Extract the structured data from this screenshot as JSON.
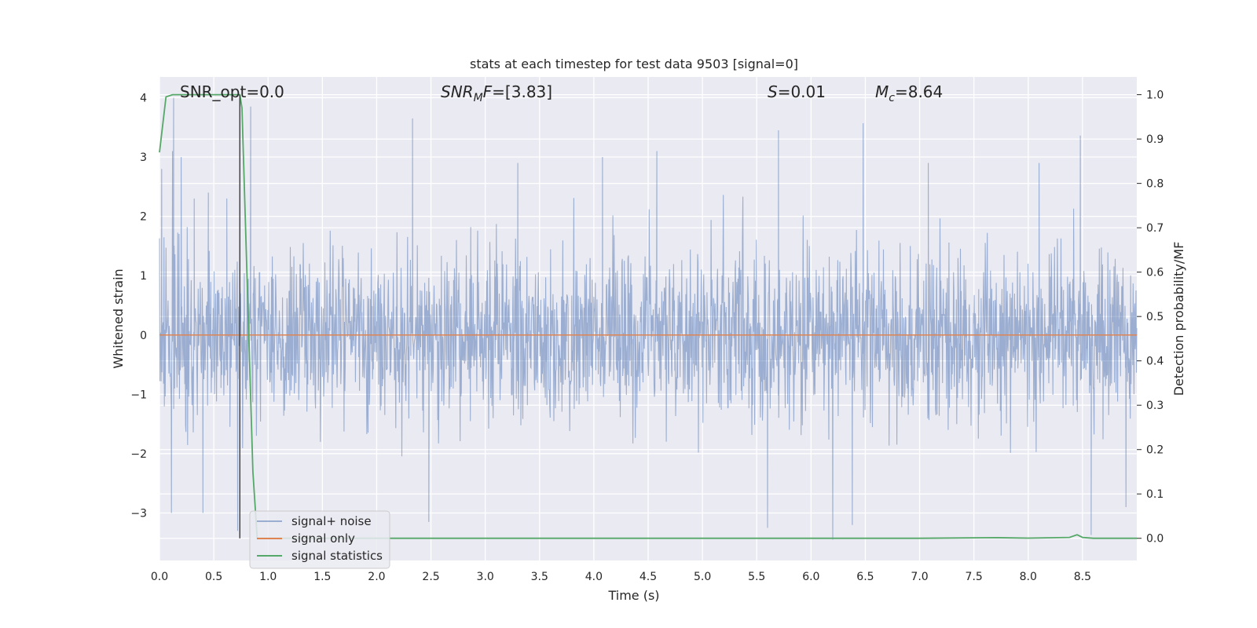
{
  "chart_data": {
    "type": "line",
    "title": "stats at each timestep for test data 9503 [signal=0]",
    "xlabel": "Time (s)",
    "ylabel_left": "Whitened strain",
    "ylabel_right": "Detection probability/MF",
    "xlim": [
      0.0,
      9.0
    ],
    "ylim_left": [
      -3.8,
      4.35
    ],
    "ylim_right": [
      -0.05,
      1.04
    ],
    "x_ticks": [
      "0.0",
      "0.5",
      "1.0",
      "1.5",
      "2.0",
      "2.5",
      "3.0",
      "3.5",
      "4.0",
      "4.5",
      "5.0",
      "5.5",
      "6.0",
      "6.5",
      "7.0",
      "7.5",
      "8.0",
      "8.5"
    ],
    "y_left_ticks": [
      "−3",
      "−2",
      "−1",
      "0",
      "1",
      "2",
      "3",
      "4"
    ],
    "y_right_ticks": [
      "0.0",
      "0.1",
      "0.2",
      "0.3",
      "0.4",
      "0.5",
      "0.6",
      "0.7",
      "0.8",
      "0.9",
      "1.0"
    ],
    "annotations": {
      "snr_opt": "SNR_opt=0.0",
      "snr_mf_sym": "SNR",
      "snr_mf_sub": "M",
      "snr_mf_sym2": "F",
      "snr_mf_val": "=[3.83]",
      "s_sym": "S",
      "s_val": "=0.01",
      "mc_sym": "M",
      "mc_sub": "c",
      "mc_val": "=8.64"
    },
    "legend": {
      "placement": "lower-left",
      "entries": [
        "signal+ noise",
        "signal only",
        "signal statistics"
      ]
    },
    "series": [
      {
        "name": "signal+ noise",
        "axis": "left",
        "color": "#4c72b0",
        "opacity": 0.5,
        "duration": 9.0,
        "typical_amplitude": 1.3,
        "peak_values": [
          {
            "x": 0.02,
            "y": 2.8
          },
          {
            "x": 0.12,
            "y": 3.1
          },
          {
            "x": 0.13,
            "y": 4.0
          },
          {
            "x": 0.2,
            "y": 3.0
          },
          {
            "x": 0.32,
            "y": 2.3
          },
          {
            "x": 0.45,
            "y": 2.4
          },
          {
            "x": 0.62,
            "y": 2.3
          },
          {
            "x": 0.84,
            "y": 3.85
          },
          {
            "x": 2.33,
            "y": 3.65
          },
          {
            "x": 3.3,
            "y": 2.9
          },
          {
            "x": 4.08,
            "y": 3.0
          },
          {
            "x": 4.58,
            "y": 3.1
          },
          {
            "x": 5.7,
            "y": 3.45
          },
          {
            "x": 6.48,
            "y": 3.57
          },
          {
            "x": 7.08,
            "y": 2.9
          },
          {
            "x": 8.1,
            "y": 2.9
          },
          {
            "x": 8.48,
            "y": 3.36
          },
          {
            "x": 0.72,
            "y": -3.3
          },
          {
            "x": 0.11,
            "y": -3.0
          },
          {
            "x": 0.4,
            "y": -3.0
          },
          {
            "x": 2.48,
            "y": -3.15
          },
          {
            "x": 5.6,
            "y": -3.25
          },
          {
            "x": 6.2,
            "y": -3.45
          },
          {
            "x": 6.38,
            "y": -3.2
          },
          {
            "x": 8.58,
            "y": -3.37
          },
          {
            "x": 8.9,
            "y": -2.9
          }
        ]
      },
      {
        "name": "signal only",
        "axis": "left",
        "color": "#dd8452",
        "x": [
          0.0,
          9.0
        ],
        "y": [
          0.0,
          0.0
        ]
      },
      {
        "name": "signal statistics",
        "axis": "right",
        "color": "#55a868",
        "x": [
          0.0,
          0.06,
          0.12,
          0.25,
          0.5,
          0.6,
          0.74,
          0.76,
          0.86,
          0.9,
          1.0,
          2.0,
          4.0,
          7.0,
          7.7,
          8.0,
          8.38,
          8.45,
          8.5,
          8.6,
          9.0
        ],
        "y": [
          0.87,
          0.995,
          1.0,
          1.0,
          1.0,
          1.0,
          1.0,
          0.97,
          0.15,
          0.0,
          0.0,
          0.0,
          0.0,
          0.0,
          0.0015,
          0.0005,
          0.002,
          0.008,
          0.002,
          0.0,
          0.0
        ]
      }
    ],
    "vertical_marker": {
      "x": 0.74,
      "color": "#444444"
    },
    "grid": true,
    "background_color": "#eaeaf2"
  }
}
